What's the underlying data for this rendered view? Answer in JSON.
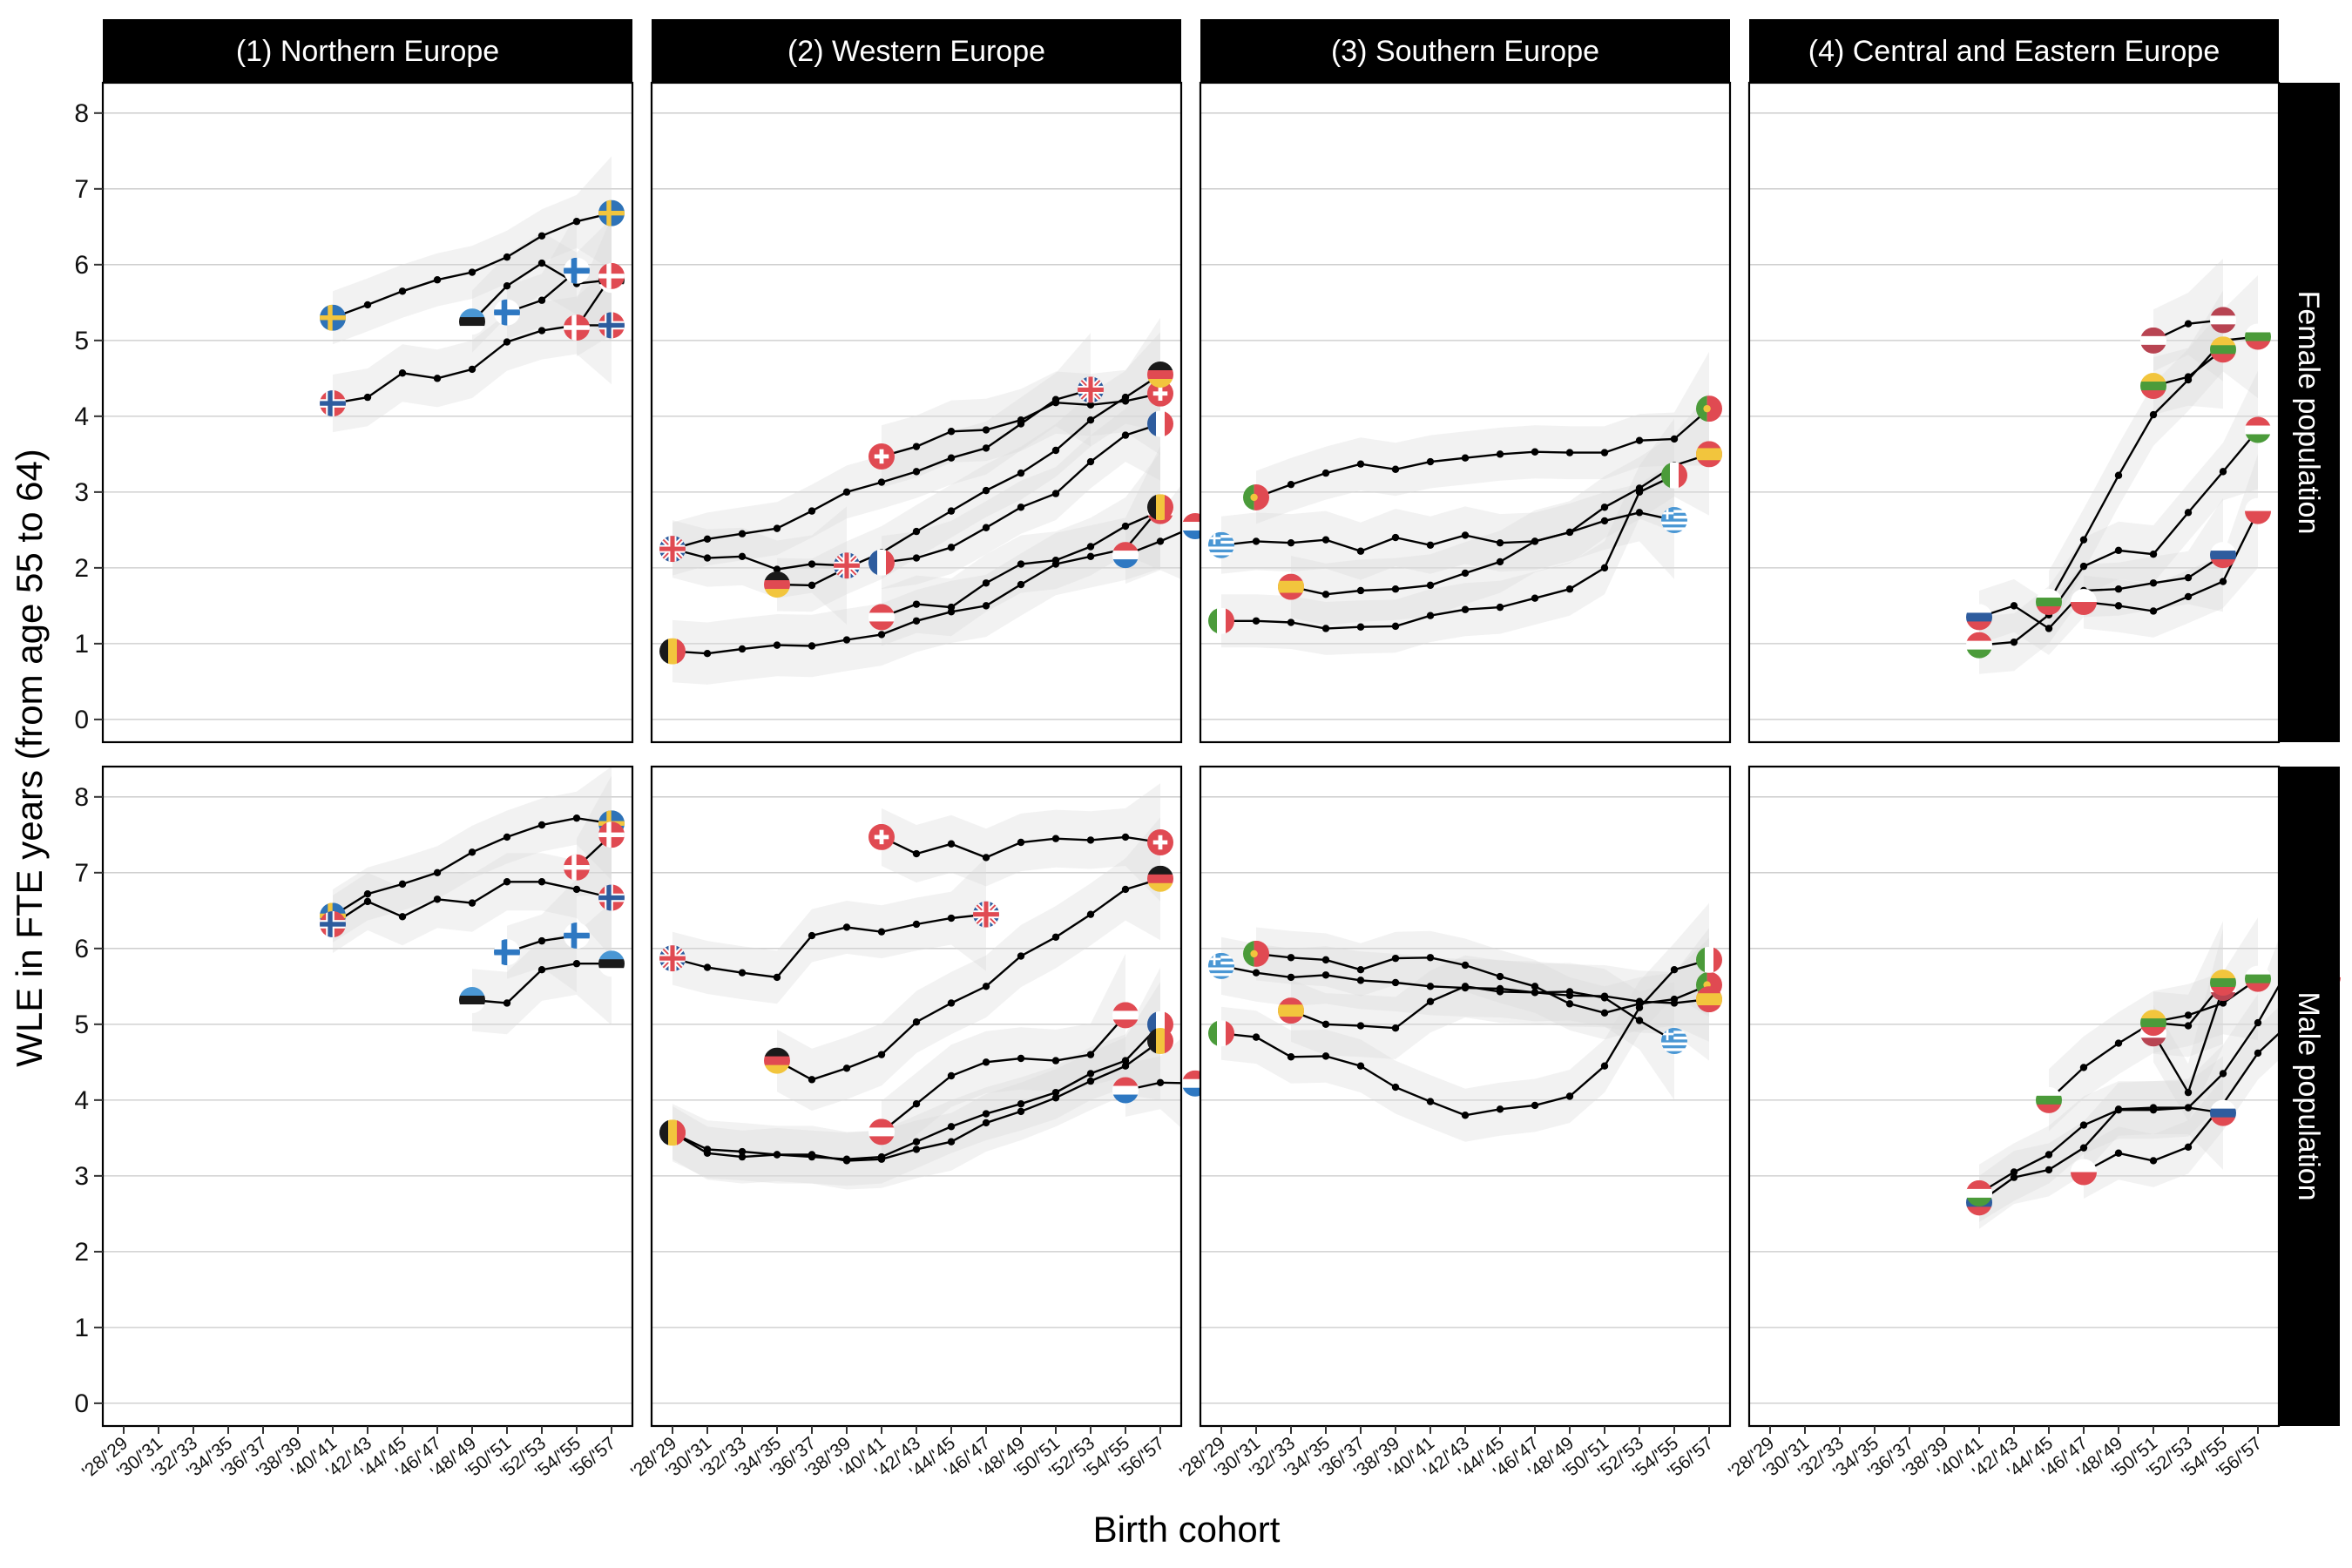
{
  "chart_data": {
    "type": "line",
    "xlabel": "Birth cohort",
    "ylabel": "WLE in FTE years (from age 55 to 64)",
    "ylim": [
      -0.3,
      8.4
    ],
    "y_ticks": [
      0,
      1,
      2,
      3,
      4,
      5,
      6,
      7,
      8
    ],
    "x_ticks": [
      "'28/'29",
      "'30/'31",
      "'32/'33",
      "'34/'35",
      "'36/'37",
      "'38/'39",
      "'40/'41",
      "'42/'43",
      "'44/'45",
      "'46/'47",
      "'48/'49",
      "'50/'51",
      "'52/'53",
      "'54/'55",
      "'56/'57"
    ],
    "column_strips": [
      "(1) Northern Europe",
      "(2) Western Europe",
      "(3) Southern Europe",
      "(4) Central and Eastern Europe"
    ],
    "row_strips": [
      "Female population",
      "Male population"
    ],
    "grid": true,
    "panels": [
      {
        "region": "(1) Northern Europe",
        "population": "Female population",
        "series": [
          {
            "flag": "sweden",
            "start": 12,
            "values": [
              5.3,
              5.47,
              5.65,
              5.8,
              5.9,
              6.1,
              6.38,
              6.57,
              6.68
            ]
          },
          {
            "flag": "norway",
            "start": 12,
            "values": [
              4.17,
              4.25,
              4.57,
              4.5,
              4.62,
              4.98,
              5.13,
              5.2,
              5.2
            ]
          },
          {
            "flag": "estonia",
            "start": 20,
            "values": [
              5.25,
              5.72,
              6.02,
              5.75,
              5.8
            ]
          },
          {
            "flag": "finland",
            "start": 22,
            "values": [
              5.37,
              5.53,
              5.92
            ]
          },
          {
            "flag": "denmark",
            "start": 26,
            "values": [
              5.17,
              5.85
            ]
          }
        ]
      },
      {
        "region": "(2) Western Europe",
        "population": "Female population",
        "series": [
          {
            "flag": "uk",
            "start": 0,
            "values": [
              2.25,
              2.38,
              2.45,
              2.52,
              2.75,
              3.0,
              3.13,
              3.27,
              3.45,
              3.58,
              3.9,
              4.22,
              4.35
            ]
          },
          {
            "flag": "uk",
            "start": 0,
            "values": [
              2.25,
              2.13,
              2.15,
              1.98,
              2.05,
              2.03
            ]
          },
          {
            "flag": "switzerland",
            "start": 12,
            "values": [
              3.47,
              3.6,
              3.8,
              3.82,
              3.95,
              4.18,
              4.15,
              4.2,
              4.3
            ]
          },
          {
            "flag": "germany",
            "start": 6,
            "values": [
              1.78,
              1.77,
              2.0,
              2.2,
              2.48,
              2.75,
              3.02,
              3.25,
              3.55,
              3.95,
              4.25,
              4.55
            ]
          },
          {
            "flag": "austria",
            "start": 12,
            "values": [
              1.35,
              1.52,
              1.48,
              1.8,
              2.05,
              2.1,
              2.28,
              2.55,
              2.75
            ]
          },
          {
            "flag": "belgium",
            "start": 0,
            "values": [
              0.9,
              0.87,
              0.93,
              0.98,
              0.97,
              1.05,
              1.12,
              1.3,
              1.42,
              1.5,
              1.78,
              2.05,
              2.15,
              2.25,
              2.8
            ]
          },
          {
            "flag": "france",
            "start": 12,
            "values": [
              2.07,
              2.13,
              2.27,
              2.53,
              2.8,
              2.98,
              3.4,
              3.75,
              3.9
            ]
          },
          {
            "flag": "netherlands",
            "start": 26,
            "values": [
              2.17,
              2.35,
              2.55
            ]
          }
        ]
      },
      {
        "region": "(3) Southern Europe",
        "population": "Female population",
        "series": [
          {
            "flag": "portugal",
            "start": 2,
            "values": [
              2.93,
              3.1,
              3.25,
              3.37,
              3.3,
              3.4,
              3.45,
              3.5,
              3.53,
              3.52,
              3.52,
              3.68,
              3.7,
              4.1
            ]
          },
          {
            "flag": "greece",
            "start": 0,
            "values": [
              2.3,
              2.35,
              2.33,
              2.37,
              2.22,
              2.4,
              2.3,
              2.43,
              2.33,
              2.35,
              2.47,
              2.62,
              2.73,
              2.63
            ]
          },
          {
            "flag": "spain",
            "start": 4,
            "values": [
              1.75,
              1.65,
              1.7,
              1.72,
              1.77,
              1.93,
              2.08,
              2.35,
              2.47,
              2.8,
              3.05,
              3.35,
              3.5
            ]
          },
          {
            "flag": "italy",
            "start": 0,
            "values": [
              1.3,
              1.3,
              1.28,
              1.2,
              1.22,
              1.23,
              1.37,
              1.45,
              1.48,
              1.6,
              1.72,
              2.0,
              3.0,
              3.22
            ]
          }
        ]
      },
      {
        "region": "(4) Central and Eastern Europe",
        "population": "Female population",
        "series": [
          {
            "flag": "slovenia",
            "start": 12,
            "values": [
              1.35,
              1.5,
              1.2,
              1.7,
              1.72,
              1.8,
              1.87,
              2.17
            ]
          },
          {
            "flag": "hungary",
            "start": 12,
            "values": [
              0.98,
              1.02,
              1.38,
              2.02,
              2.23,
              2.18,
              2.73,
              3.27,
              3.82
            ]
          },
          {
            "flag": "bulgaria",
            "start": 16,
            "values": [
              1.55,
              2.37,
              3.22,
              4.02,
              4.48,
              5.0,
              5.05
            ]
          },
          {
            "flag": "czech",
            "start": 18,
            "values": [
              1.55,
              1.5,
              1.43,
              1.62,
              1.82,
              2.75
            ]
          },
          {
            "flag": "lithuania",
            "start": 22,
            "values": [
              4.4,
              4.52,
              4.88
            ]
          },
          {
            "flag": "latvia",
            "start": 22,
            "values": [
              5.0,
              5.22,
              5.27
            ]
          }
        ]
      },
      {
        "region": "(1) Northern Europe",
        "population": "Male population",
        "series": [
          {
            "flag": "sweden",
            "start": 12,
            "values": [
              6.43,
              6.72,
              6.85,
              7.0,
              7.27,
              7.47,
              7.63,
              7.72,
              7.65
            ]
          },
          {
            "flag": "norway",
            "start": 12,
            "values": [
              6.32,
              6.62,
              6.42,
              6.65,
              6.6,
              6.88,
              6.88,
              6.78,
              6.67
            ]
          },
          {
            "flag": "estonia",
            "start": 20,
            "values": [
              5.32,
              5.28,
              5.72,
              5.8,
              5.8
            ]
          },
          {
            "flag": "finland",
            "start": 22,
            "values": [
              5.95,
              6.1,
              6.17
            ]
          },
          {
            "flag": "denmark",
            "start": 26,
            "values": [
              7.07,
              7.5
            ]
          }
        ]
      },
      {
        "region": "(2) Western Europe",
        "population": "Male population",
        "series": [
          {
            "flag": "uk",
            "start": 0,
            "values": [
              5.87,
              5.75,
              5.68,
              5.62,
              6.17,
              6.28,
              6.22,
              6.32,
              6.4,
              6.45
            ]
          },
          {
            "flag": "switzerland",
            "start": 12,
            "values": [
              7.47,
              7.25,
              7.38,
              7.2,
              7.4,
              7.45,
              7.43,
              7.47,
              7.4
            ]
          },
          {
            "flag": "germany",
            "start": 6,
            "values": [
              4.52,
              4.27,
              4.42,
              4.6,
              5.03,
              5.28,
              5.5,
              5.9,
              6.15,
              6.45,
              6.78,
              6.92
            ]
          },
          {
            "flag": "france",
            "start": 0,
            "values": [
              3.57,
              3.3,
              3.25,
              3.28,
              3.25,
              3.22,
              3.25,
              3.45,
              3.65,
              3.82,
              3.95,
              4.1,
              4.35,
              4.52,
              5.0
            ]
          },
          {
            "flag": "belgium",
            "start": 0,
            "values": [
              3.57,
              3.35,
              3.32,
              3.28,
              3.28,
              3.2,
              3.22,
              3.35,
              3.45,
              3.7,
              3.85,
              4.03,
              4.25,
              4.45,
              4.78
            ]
          },
          {
            "flag": "austria",
            "start": 12,
            "values": [
              3.58,
              3.95,
              4.32,
              4.5,
              4.55,
              4.52,
              4.6,
              5.12
            ]
          },
          {
            "flag": "netherlands",
            "start": 26,
            "values": [
              4.13,
              4.23,
              4.22
            ]
          }
        ]
      },
      {
        "region": "(3) Southern Europe",
        "population": "Male population",
        "series": [
          {
            "flag": "portugal",
            "start": 2,
            "values": [
              5.93,
              5.88,
              5.85,
              5.72,
              5.87,
              5.88,
              5.78,
              5.63,
              5.5,
              5.27,
              5.15,
              5.27,
              5.33,
              5.52
            ]
          },
          {
            "flag": "greece",
            "start": 0,
            "values": [
              5.77,
              5.68,
              5.62,
              5.65,
              5.58,
              5.55,
              5.5,
              5.48,
              5.47,
              5.42,
              5.43,
              5.35,
              5.05,
              4.78
            ]
          },
          {
            "flag": "spain",
            "start": 4,
            "values": [
              5.18,
              5.0,
              4.98,
              4.95,
              5.3,
              5.5,
              5.43,
              5.42,
              5.38,
              5.37,
              5.3,
              5.28,
              5.33
            ]
          },
          {
            "flag": "italy",
            "start": 0,
            "values": [
              4.88,
              4.83,
              4.57,
              4.58,
              4.45,
              4.17,
              3.98,
              3.8,
              3.88,
              3.93,
              4.05,
              4.45,
              5.22,
              5.72,
              5.85
            ]
          }
        ]
      },
      {
        "region": "(4) Central and Eastern Europe",
        "population": "Male population",
        "series": [
          {
            "flag": "slovenia",
            "start": 12,
            "values": [
              2.65,
              2.98,
              3.08,
              3.37,
              3.88,
              3.9,
              3.9,
              3.83
            ]
          },
          {
            "flag": "hungary",
            "start": 12,
            "values": [
              2.77,
              3.05,
              3.28,
              3.67,
              3.87,
              3.87,
              3.9,
              4.35,
              5.02,
              5.83
            ]
          },
          {
            "flag": "bulgaria",
            "start": 16,
            "values": [
              4.0,
              4.43,
              4.75,
              5.03,
              5.12,
              5.28,
              5.6
            ]
          },
          {
            "flag": "czech",
            "start": 18,
            "values": [
              3.05,
              3.3,
              3.2,
              3.38,
              3.95,
              4.62,
              5.05,
              5.62
            ]
          },
          {
            "flag": "latvia",
            "start": 22,
            "values": [
              4.88,
              4.1,
              5.48
            ]
          },
          {
            "flag": "lithuania",
            "start": 22,
            "values": [
              5.02,
              4.98,
              5.55
            ]
          }
        ]
      }
    ]
  },
  "flags": {
    "sweden": {
      "type": "nordic",
      "bg": "#2E73B8",
      "cross": "#F2C53D"
    },
    "norway": {
      "type": "nordic",
      "bg": "#E04A52",
      "cross": "#2E5C9E",
      "border": "#ffffff"
    },
    "denmark": {
      "type": "nordic",
      "bg": "#E04A52",
      "cross": "#ffffff"
    },
    "finland": {
      "type": "cross",
      "color": "#2E78C2"
    },
    "estonia": {
      "type": "h3",
      "colors": [
        "#4A97D4",
        "#1a1a1a",
        "#ffffff"
      ]
    },
    "uk": {
      "type": "uk"
    },
    "switzerland": {
      "type": "swiss"
    },
    "germany": {
      "type": "h3",
      "colors": [
        "#1a1a1a",
        "#E04A52",
        "#F2C53D"
      ]
    },
    "austria": {
      "type": "h3",
      "colors": [
        "#E04A52",
        "#ffffff",
        "#E04A52"
      ]
    },
    "belgium": {
      "type": "v3",
      "colors": [
        "#1a1a1a",
        "#F2C53D",
        "#E04A52"
      ]
    },
    "france": {
      "type": "v3",
      "colors": [
        "#2E5C9E",
        "#ffffff",
        "#E04A52"
      ]
    },
    "netherlands": {
      "type": "h3",
      "colors": [
        "#E04A52",
        "#ffffff",
        "#2E78C2"
      ]
    },
    "portugal": {
      "type": "v2",
      "colors": [
        "#4B9B3A",
        "#E04A52"
      ]
    },
    "greece": {
      "type": "stripes",
      "colors": [
        "#4A97D4",
        "#ffffff"
      ]
    },
    "spain": {
      "type": "h3w",
      "colors": [
        "#E04A52",
        "#F2C53D",
        "#E04A52"
      ]
    },
    "italy": {
      "type": "v3",
      "colors": [
        "#4B9B3A",
        "#ffffff",
        "#E04A52"
      ]
    },
    "slovenia": {
      "type": "h3",
      "colors": [
        "#ffffff",
        "#2E5C9E",
        "#E04A52"
      ]
    },
    "hungary": {
      "type": "h3",
      "colors": [
        "#E04A52",
        "#ffffff",
        "#4B9B3A"
      ]
    },
    "bulgaria": {
      "type": "h3",
      "colors": [
        "#ffffff",
        "#4B9B3A",
        "#E04A52"
      ]
    },
    "czech": {
      "type": "h2",
      "colors": [
        "#ffffff",
        "#E04A52"
      ]
    },
    "lithuania": {
      "type": "h3",
      "colors": [
        "#F2C53D",
        "#4B9B3A",
        "#E04A52"
      ]
    },
    "latvia": {
      "type": "h3",
      "colors": [
        "#B84452",
        "#ffffff",
        "#B84452"
      ]
    }
  }
}
